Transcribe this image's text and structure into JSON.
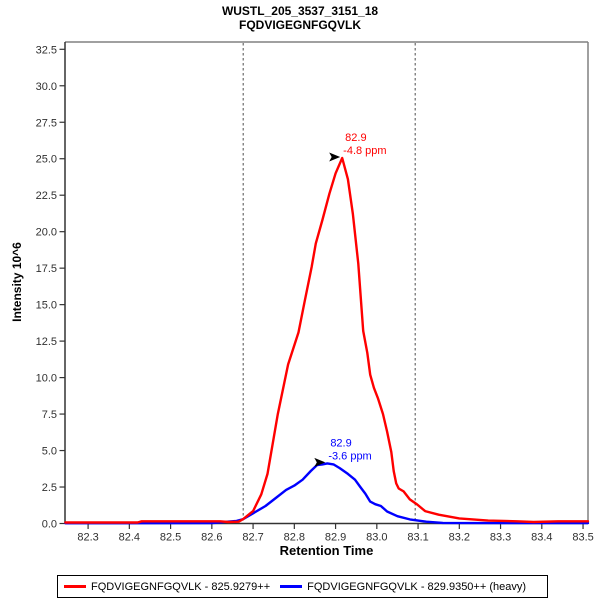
{
  "header": {
    "title_line1": "WUSTL_205_3537_3151_18",
    "title_line2": "FQDVIGEGNFGQVLK"
  },
  "legend": {
    "items": [
      {
        "label": "FQDVIGEGNFGQVLK - 825.9279++",
        "color": "#ff0000"
      },
      {
        "label": "FQDVIGEGNFGQVLK - 829.9350++ (heavy)",
        "color": "#0000ff"
      }
    ]
  },
  "chart_data": {
    "type": "line",
    "title": "WUSTL_205_3537_3151_18 FQDVIGEGNFGQVLK",
    "xlabel": "Retention Time",
    "ylabel": "Intensity 10^6",
    "xlim": [
      82.244,
      83.512
    ],
    "ylim": [
      0,
      33.0
    ],
    "xticks": [
      82.3,
      82.4,
      82.5,
      82.6,
      82.7,
      82.8,
      82.9,
      83.0,
      83.1,
      83.2,
      83.3,
      83.4,
      83.5
    ],
    "yticks": [
      0.0,
      2.5,
      5.0,
      7.5,
      10.0,
      12.5,
      15.0,
      17.5,
      20.0,
      22.5,
      25.0,
      27.5,
      30.0,
      32.5
    ],
    "boundaries": [
      82.676,
      83.093
    ],
    "colors": {
      "light": "#ff0000",
      "heavy": "#0000ff",
      "boundary": "#4d4d4d",
      "axis": "#333333",
      "border": "#808080",
      "tick_text": "#303030",
      "arrow": "#000000"
    },
    "series": [
      {
        "name": "FQDVIGEGNFGQVLK - 829.9350++ (heavy)",
        "color": "#0000ff",
        "points": [
          [
            82.245,
            0.02
          ],
          [
            82.6,
            0.03
          ],
          [
            82.63,
            0.1
          ],
          [
            82.66,
            0.18
          ],
          [
            82.676,
            0.3
          ],
          [
            82.7,
            0.7
          ],
          [
            82.73,
            1.2
          ],
          [
            82.755,
            1.75
          ],
          [
            82.78,
            2.3
          ],
          [
            82.8,
            2.6
          ],
          [
            82.82,
            3.0
          ],
          [
            82.84,
            3.6
          ],
          [
            82.855,
            4.0
          ],
          [
            82.868,
            4.05
          ],
          [
            82.88,
            4.12
          ],
          [
            82.895,
            4.05
          ],
          [
            82.91,
            3.8
          ],
          [
            82.93,
            3.4
          ],
          [
            82.947,
            3.0
          ],
          [
            82.96,
            2.5
          ],
          [
            82.972,
            2.05
          ],
          [
            82.984,
            1.5
          ],
          [
            82.996,
            1.32
          ],
          [
            83.01,
            1.2
          ],
          [
            83.025,
            0.82
          ],
          [
            83.05,
            0.5
          ],
          [
            83.08,
            0.28
          ],
          [
            83.12,
            0.12
          ],
          [
            83.16,
            0.04
          ],
          [
            83.3,
            0.03
          ],
          [
            83.512,
            0.03
          ]
        ]
      },
      {
        "name": "FQDVIGEGNFGQVLK - 825.9279++",
        "color": "#ff0000",
        "points": [
          [
            82.245,
            0.07
          ],
          [
            82.42,
            0.07
          ],
          [
            82.43,
            0.15
          ],
          [
            82.62,
            0.15
          ],
          [
            82.64,
            0.1
          ],
          [
            82.665,
            0.12
          ],
          [
            82.676,
            0.3
          ],
          [
            82.7,
            0.85
          ],
          [
            82.72,
            2.0
          ],
          [
            82.735,
            3.4
          ],
          [
            82.76,
            7.5
          ],
          [
            82.785,
            10.9
          ],
          [
            82.81,
            13.1
          ],
          [
            82.825,
            15.2
          ],
          [
            82.842,
            17.6
          ],
          [
            82.852,
            19.2
          ],
          [
            82.868,
            20.8
          ],
          [
            82.885,
            22.6
          ],
          [
            82.9,
            24.0
          ],
          [
            82.916,
            25.05
          ],
          [
            82.93,
            23.6
          ],
          [
            82.942,
            21.2
          ],
          [
            82.955,
            17.8
          ],
          [
            82.967,
            13.2
          ],
          [
            82.977,
            11.7
          ],
          [
            82.984,
            10.2
          ],
          [
            82.993,
            9.3
          ],
          [
            83.003,
            8.55
          ],
          [
            83.015,
            7.5
          ],
          [
            83.025,
            6.3
          ],
          [
            83.035,
            4.9
          ],
          [
            83.041,
            3.6
          ],
          [
            83.047,
            2.75
          ],
          [
            83.053,
            2.4
          ],
          [
            83.065,
            2.2
          ],
          [
            83.08,
            1.65
          ],
          [
            83.098,
            1.3
          ],
          [
            83.117,
            0.85
          ],
          [
            83.15,
            0.6
          ],
          [
            83.2,
            0.35
          ],
          [
            83.27,
            0.2
          ],
          [
            83.34,
            0.15
          ],
          [
            83.38,
            0.1
          ],
          [
            83.44,
            0.15
          ],
          [
            83.512,
            0.15
          ]
        ]
      }
    ],
    "annotations": [
      {
        "name": "light",
        "rt_label": "82.9",
        "ppm_label": "-4.8 ppm",
        "color": "#ff0000",
        "x": 82.916,
        "y": 25.05
      },
      {
        "name": "heavy",
        "rt_label": "82.9",
        "ppm_label": "-3.6 ppm",
        "color": "#0000ff",
        "x": 82.88,
        "y": 4.12
      }
    ],
    "legend_position": "bottom"
  }
}
